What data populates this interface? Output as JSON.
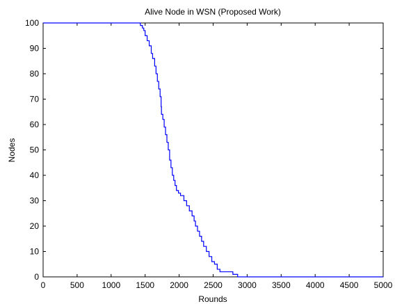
{
  "chart_data": {
    "type": "line",
    "title": "Alive Node in WSN (Proposed Work)",
    "xlabel": "Rounds",
    "ylabel": "Nodes",
    "xlim": [
      0,
      5000
    ],
    "ylim": [
      0,
      100
    ],
    "xticks": [
      0,
      500,
      1000,
      1500,
      2000,
      2500,
      3000,
      3500,
      4000,
      4500,
      5000
    ],
    "yticks": [
      0,
      10,
      20,
      30,
      40,
      50,
      60,
      70,
      80,
      90,
      100
    ],
    "xtick_labels": [
      "0",
      "500",
      "1000",
      "1500",
      "2000",
      "2500",
      "3000",
      "3500",
      "4000",
      "4500",
      "5000"
    ],
    "ytick_labels": [
      "0",
      "10",
      "20",
      "30",
      "40",
      "50",
      "60",
      "70",
      "80",
      "90",
      "100"
    ],
    "grid": false,
    "line_color": "#0000ff",
    "series": [
      {
        "x": [
          0,
          1390,
          1430,
          1460,
          1480,
          1500,
          1530,
          1560,
          1590,
          1610,
          1640,
          1660,
          1680,
          1700,
          1720,
          1735,
          1740,
          1760,
          1780,
          1800,
          1820,
          1840,
          1860,
          1880,
          1900,
          1920,
          1940,
          1960,
          1990,
          2020,
          2070,
          2110,
          2150,
          2190,
          2220,
          2240,
          2270,
          2300,
          2330,
          2360,
          2400,
          2440,
          2480,
          2520,
          2560,
          2600,
          2640,
          2690,
          2740,
          2790,
          2820,
          2860,
          5000
        ],
        "y": [
          100,
          100,
          99,
          98,
          97,
          95,
          93,
          91,
          88,
          86,
          83,
          80,
          77,
          74,
          71,
          67,
          64,
          62,
          59,
          56,
          53,
          50,
          46,
          43,
          40,
          38,
          36,
          34,
          33,
          32,
          30,
          28,
          26,
          24,
          22,
          20,
          18,
          16,
          14,
          12,
          10,
          8,
          6,
          5,
          3,
          2,
          2,
          2,
          2,
          1,
          1,
          0,
          0
        ]
      }
    ]
  }
}
